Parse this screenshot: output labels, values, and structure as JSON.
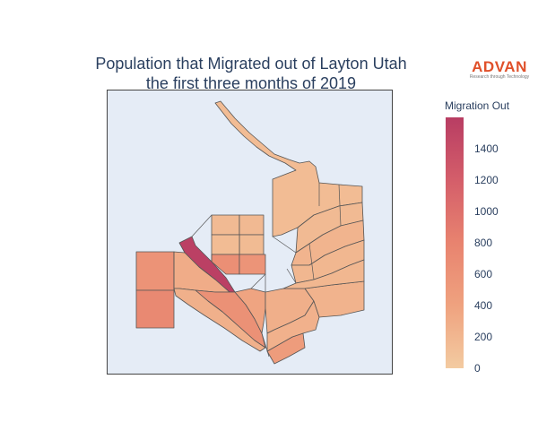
{
  "title": {
    "line1": "Population that Migrated out of Layton Utah",
    "line2": "the first three months of 2019"
  },
  "logo": {
    "word": "ADVAN",
    "tagline": "Research through Technology",
    "color": "#e0502a"
  },
  "colorbar": {
    "title": "Migration Out",
    "min": 0,
    "max": 1600,
    "ticks": [
      "0",
      "200",
      "400",
      "600",
      "800",
      "1000",
      "1200",
      "1400"
    ],
    "colorscale": [
      "#f3cba1",
      "#efa27f",
      "#e8836f",
      "#d45e6a",
      "#b83d63"
    ]
  },
  "chart_data": {
    "type": "choropleth",
    "title": "Population that Migrated out of Layton Utah the first three months of 2019",
    "colorbar_title": "Migration Out",
    "range": [
      0,
      1600
    ],
    "regions": [
      {
        "id": "northeast",
        "value": 150
      },
      {
        "id": "ne-lower-row-a",
        "value": 170
      },
      {
        "id": "ne-lower-row-b",
        "value": 220
      },
      {
        "id": "ne-lower-row-c",
        "value": 200
      },
      {
        "id": "top-mid-1",
        "value": 170
      },
      {
        "id": "top-mid-2",
        "value": 180
      },
      {
        "id": "top-mid-3",
        "value": 160
      },
      {
        "id": "top-mid-4",
        "value": 150
      },
      {
        "id": "west-upper",
        "value": 600
      },
      {
        "id": "west-lower",
        "value": 720
      },
      {
        "id": "diagonal-strip",
        "value": 1560
      },
      {
        "id": "center-orange-1",
        "value": 650
      },
      {
        "id": "center-orange-2",
        "value": 580
      },
      {
        "id": "center-tan-1",
        "value": 300
      },
      {
        "id": "southwest-strip",
        "value": 620
      },
      {
        "id": "south-center",
        "value": 380
      },
      {
        "id": "south-east-block",
        "value": 480
      },
      {
        "id": "south-tan-1",
        "value": 270
      },
      {
        "id": "south-tan-2",
        "value": 250
      },
      {
        "id": "east-blocks",
        "value": 230
      },
      {
        "id": "small-1",
        "value": 200
      },
      {
        "id": "small-2",
        "value": 260
      }
    ]
  }
}
